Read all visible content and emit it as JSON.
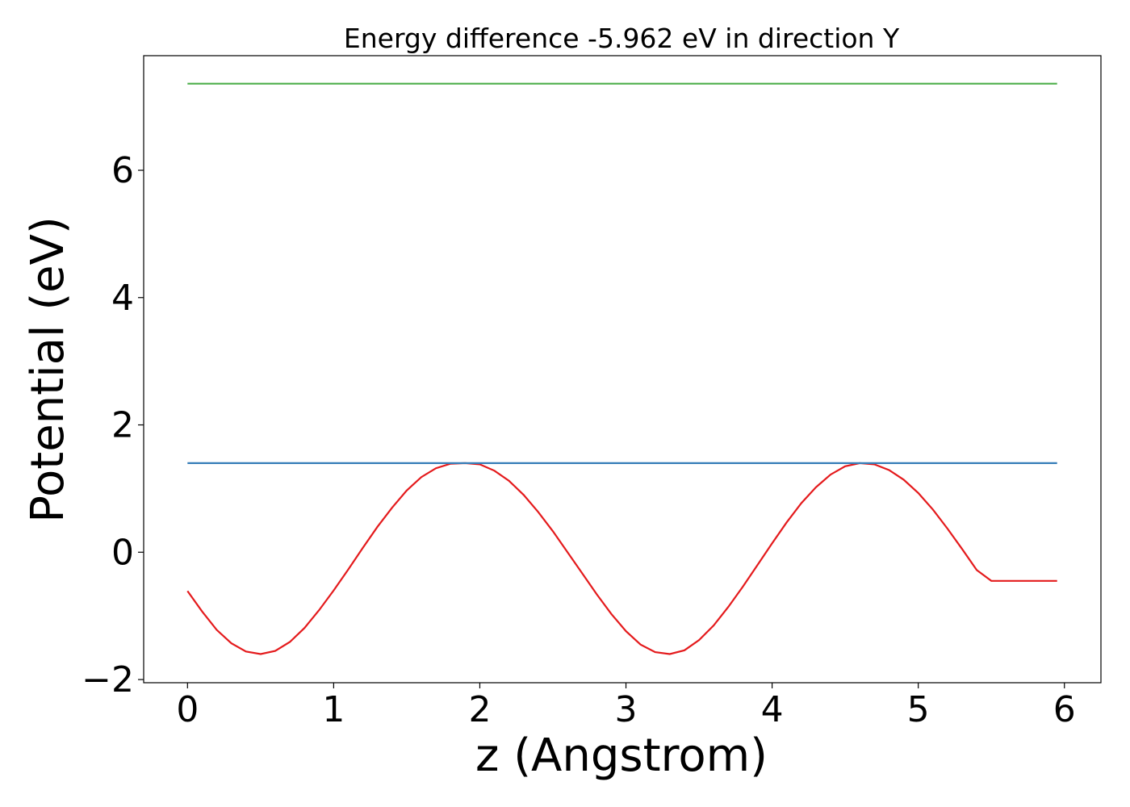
{
  "chart_data": {
    "type": "line",
    "title": "Energy difference -5.962 eV in direction Y",
    "xlabel": "z (Angstrom)",
    "ylabel": "Potential (eV)",
    "xlim": [
      -0.3,
      6.25
    ],
    "ylim": [
      -2.05,
      7.8
    ],
    "xticks": [
      0,
      1,
      2,
      3,
      4,
      5,
      6
    ],
    "xtick_labels": [
      "0",
      "1",
      "2",
      "3",
      "4",
      "5",
      "6"
    ],
    "yticks": [
      -2,
      0,
      2,
      4,
      6
    ],
    "ytick_labels": [
      "−2",
      "0",
      "2",
      "4",
      "6"
    ],
    "grid": false,
    "series": [
      {
        "color": "#e41a1c",
        "x": [
          0,
          0.1,
          0.2,
          0.3,
          0.4,
          0.5,
          0.6,
          0.7,
          0.8,
          0.9,
          1.0,
          1.1,
          1.2,
          1.3,
          1.4,
          1.5,
          1.6,
          1.7,
          1.8,
          1.9,
          2.0,
          2.1,
          2.2,
          2.3,
          2.4,
          2.5,
          2.6,
          2.7,
          2.8,
          2.9,
          3.0,
          3.1,
          3.2,
          3.3,
          3.4,
          3.5,
          3.6,
          3.7,
          3.8,
          3.9,
          4.0,
          4.1,
          4.2,
          4.3,
          4.4,
          4.5,
          4.6,
          4.7,
          4.8,
          4.9,
          5.0,
          5.1,
          5.2,
          5.3,
          5.4,
          5.5,
          5.6,
          5.7,
          5.8,
          5.9,
          5.95
        ],
        "y": [
          -0.61,
          -0.93,
          -1.22,
          -1.43,
          -1.56,
          -1.6,
          -1.55,
          -1.41,
          -1.19,
          -0.91,
          -0.6,
          -0.27,
          0.07,
          0.4,
          0.7,
          0.97,
          1.18,
          1.32,
          1.39,
          1.4,
          1.38,
          1.28,
          1.12,
          0.9,
          0.63,
          0.33,
          0.0,
          -0.33,
          -0.66,
          -0.97,
          -1.24,
          -1.45,
          -1.57,
          -1.6,
          -1.54,
          -1.38,
          -1.15,
          -0.86,
          -0.54,
          -0.2,
          0.14,
          0.47,
          0.77,
          1.02,
          1.22,
          1.35,
          1.4,
          1.38,
          1.29,
          1.14,
          0.93,
          0.67,
          0.37,
          0.05,
          -0.28,
          -0.45,
          -0.45,
          -0.45,
          -0.45,
          -0.45,
          -0.45
        ]
      },
      {
        "color": "#377eb8",
        "x": [
          0,
          5.95
        ],
        "y": [
          1.4,
          1.4
        ]
      },
      {
        "color": "#4daf4a",
        "x": [
          0,
          5.95
        ],
        "y": [
          7.36,
          7.36
        ]
      }
    ]
  }
}
